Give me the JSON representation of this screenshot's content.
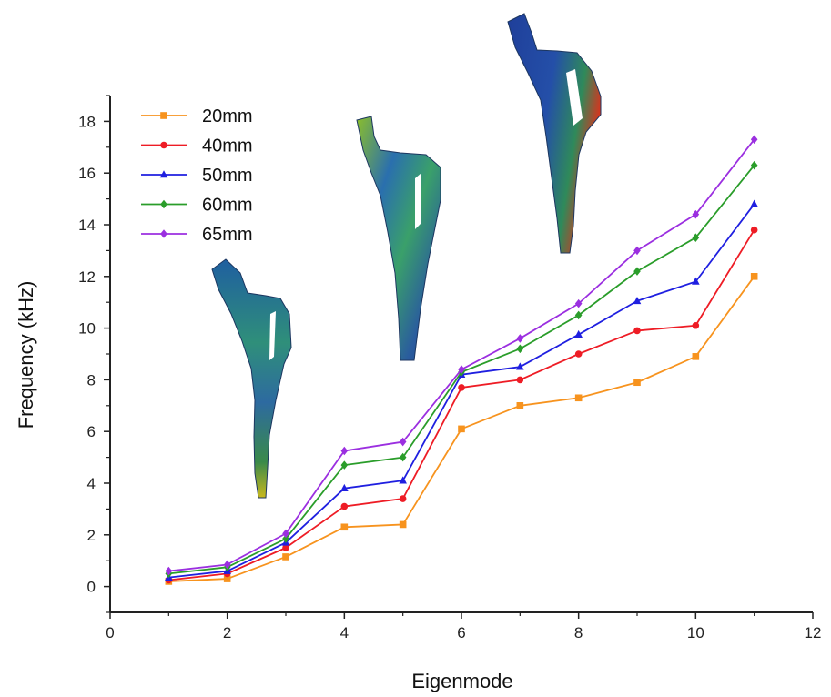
{
  "chart_data": {
    "type": "line",
    "title": "",
    "xlabel": "Eigenmode",
    "ylabel": "Frequency (kHz)",
    "xlim": [
      0,
      12
    ],
    "ylim": [
      -1,
      19
    ],
    "x_ticks": [
      "0",
      "2",
      "4",
      "6",
      "8",
      "10",
      "12"
    ],
    "y_ticks": [
      "0",
      "2",
      "4",
      "6",
      "8",
      "10",
      "12",
      "14",
      "16",
      "18"
    ],
    "grid": false,
    "legend_position": "top-left",
    "x": [
      1,
      2,
      3,
      4,
      5,
      6,
      7,
      8,
      9,
      10,
      11
    ],
    "series": [
      {
        "name": "20mm",
        "color": "#f7931e",
        "marker": "square",
        "values": [
          0.2,
          0.3,
          1.15,
          2.3,
          2.4,
          6.1,
          7.0,
          7.3,
          7.9,
          8.9,
          12.0
        ]
      },
      {
        "name": "40mm",
        "color": "#ee1c25",
        "marker": "circle",
        "values": [
          0.25,
          0.5,
          1.5,
          3.1,
          3.4,
          7.7,
          8.0,
          9.0,
          9.9,
          10.1,
          13.8
        ]
      },
      {
        "name": "50mm",
        "color": "#1f1fe0",
        "marker": "triangle",
        "values": [
          0.35,
          0.6,
          1.7,
          3.8,
          4.1,
          8.2,
          8.5,
          9.75,
          11.05,
          11.8,
          14.8
        ]
      },
      {
        "name": "60mm",
        "color": "#2a9d2a",
        "marker": "diamond",
        "values": [
          0.5,
          0.75,
          1.85,
          4.7,
          5.0,
          8.3,
          9.2,
          10.5,
          12.2,
          13.5,
          16.3
        ]
      },
      {
        "name": "65mm",
        "color": "#9b2fe0",
        "marker": "diamond",
        "values": [
          0.6,
          0.85,
          2.05,
          5.25,
          5.6,
          8.4,
          9.6,
          10.95,
          13.0,
          14.4,
          17.3
        ]
      }
    ]
  },
  "insets": [
    {
      "name": "stem-mode-1"
    },
    {
      "name": "stem-mode-2"
    },
    {
      "name": "stem-mode-3"
    }
  ]
}
